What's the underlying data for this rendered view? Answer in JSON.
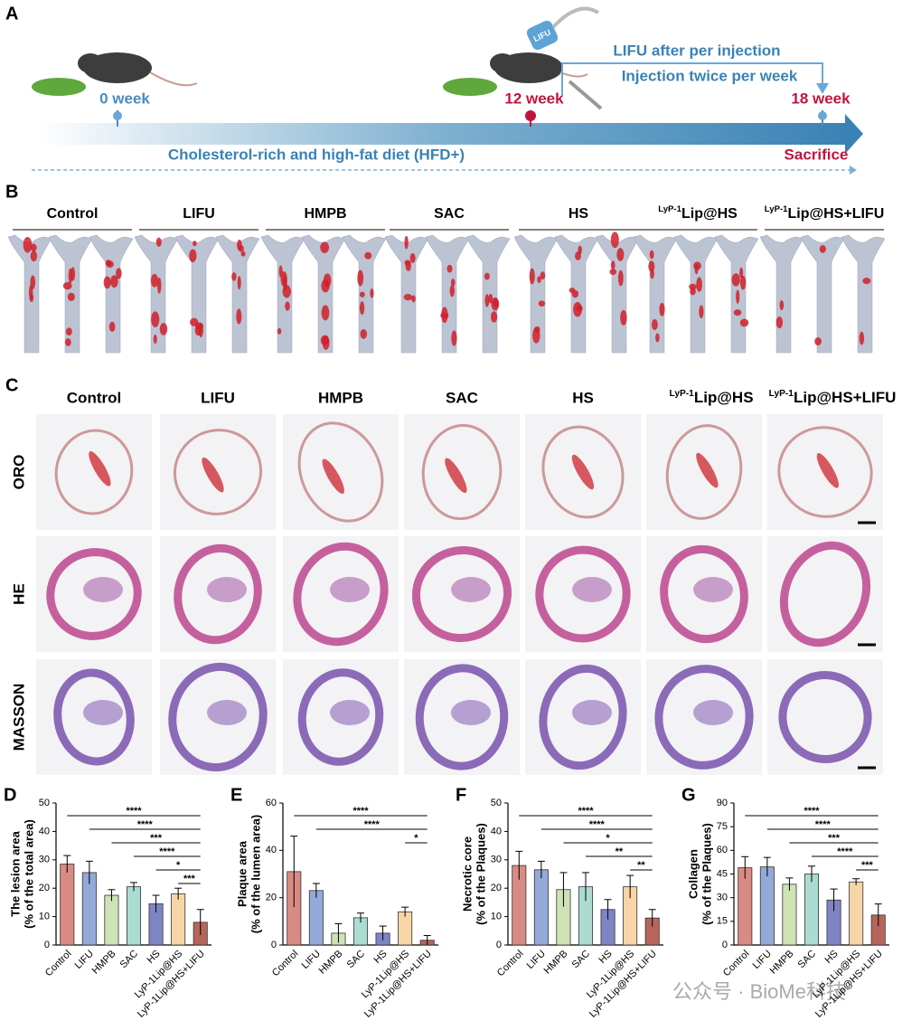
{
  "panel_a": {
    "letter": "A",
    "device": "LIFU",
    "week0": "0 week",
    "week12": "12 week",
    "week18": "18 week",
    "lifu_note": "LIFU after per injection",
    "injection_note": "Injection twice per week",
    "diet": "Cholesterol-rich and high-fat diet (HFD+)",
    "sacrifice": "Sacrifice"
  },
  "panel_b": {
    "letter": "B",
    "headers": [
      "Control",
      "LIFU",
      "HMPB",
      "SAC",
      "HS",
      {
        "sup": "LyP-1",
        "text": "Lip@HS"
      },
      {
        "sup": "LyP-1",
        "text": "Lip@HS+LIFU"
      }
    ]
  },
  "panel_c": {
    "letter": "C",
    "headers": [
      "Control",
      "LIFU",
      "HMPB",
      "SAC",
      "HS",
      {
        "sup": "LyP-1",
        "text": "Lip@HS"
      },
      {
        "sup": "LyP-1",
        "text": "Lip@HS+LIFU"
      }
    ],
    "rows": [
      "ORO",
      "HE",
      "MASSON"
    ]
  },
  "watermark": "公众号 · BioMe科技",
  "chart_data": [
    {
      "type": "bar",
      "label": "D",
      "ylabel": [
        "The lesion area",
        "(% of the total area)"
      ],
      "categories": [
        "Control",
        "LIFU",
        "HMPB",
        "SAC",
        "HS",
        "LyP-1Lip@HS",
        "LyP-1Lip@HS+LIFU"
      ],
      "values": [
        28.5,
        25.5,
        17.5,
        20.5,
        14.5,
        18,
        8
      ],
      "errors": [
        3,
        4,
        2,
        1.5,
        3,
        2,
        4.5
      ],
      "colors": [
        "#d98b83",
        "#93a9d8",
        "#cfe2b6",
        "#acdcd1",
        "#7f85c4",
        "#f8d5a6",
        "#b7655b"
      ],
      "ylim": [
        0,
        50
      ],
      "yticks": [
        0,
        10,
        20,
        30,
        40,
        50
      ],
      "significance": [
        {
          "label": "****",
          "from": "Control",
          "to": "LyP-1Lip@HS+LIFU"
        },
        {
          "label": "****",
          "from": "LIFU",
          "to": "LyP-1Lip@HS+LIFU"
        },
        {
          "label": "***",
          "from": "HMPB",
          "to": "LyP-1Lip@HS+LIFU"
        },
        {
          "label": "****",
          "from": "SAC",
          "to": "LyP-1Lip@HS+LIFU"
        },
        {
          "label": "*",
          "from": "HS",
          "to": "LyP-1Lip@HS+LIFU"
        },
        {
          "label": "***",
          "from": "LyP-1Lip@HS",
          "to": "LyP-1Lip@HS+LIFU"
        }
      ]
    },
    {
      "type": "bar",
      "label": "E",
      "ylabel": [
        "Plaque area",
        "(% of the lumen area)"
      ],
      "categories": [
        "Control",
        "LIFU",
        "HMPB",
        "SAC",
        "HS",
        "LyP-1Lip@HS",
        "LyP-1Lip@HS+LIFU"
      ],
      "values": [
        31,
        23,
        5,
        11.5,
        5,
        14,
        2
      ],
      "errors": [
        15,
        3,
        4,
        2,
        3,
        2,
        2
      ],
      "colors": [
        "#d98b83",
        "#93a9d8",
        "#cfe2b6",
        "#acdcd1",
        "#7f85c4",
        "#f8d5a6",
        "#b7655b"
      ],
      "ylim": [
        0,
        60
      ],
      "yticks": [
        0,
        20,
        40,
        60
      ],
      "significance": [
        {
          "label": "****",
          "from": "Control",
          "to": "LyP-1Lip@HS+LIFU"
        },
        {
          "label": "****",
          "from": "LIFU",
          "to": "LyP-1Lip@HS+LIFU"
        },
        {
          "label": "*",
          "from": "LyP-1Lip@HS",
          "to": "LyP-1Lip@HS+LIFU"
        }
      ]
    },
    {
      "type": "bar",
      "label": "F",
      "ylabel": [
        "Necrotic core",
        "(% of the Plaques)"
      ],
      "categories": [
        "Control",
        "LIFU",
        "HMPB",
        "SAC",
        "HS",
        "LyP-1Lip@HS",
        "LyP-1Lip@HS+LIFU"
      ],
      "values": [
        28,
        26.5,
        19.5,
        20.5,
        12.5,
        20.5,
        9.5
      ],
      "errors": [
        5,
        3,
        6,
        5,
        3.5,
        4,
        3
      ],
      "colors": [
        "#d98b83",
        "#93a9d8",
        "#cfe2b6",
        "#acdcd1",
        "#7f85c4",
        "#f8d5a6",
        "#b7655b"
      ],
      "ylim": [
        0,
        50
      ],
      "yticks": [
        0,
        10,
        20,
        30,
        40,
        50
      ],
      "significance": [
        {
          "label": "****",
          "from": "Control",
          "to": "LyP-1Lip@HS+LIFU"
        },
        {
          "label": "****",
          "from": "LIFU",
          "to": "LyP-1Lip@HS+LIFU"
        },
        {
          "label": "*",
          "from": "HMPB",
          "to": "LyP-1Lip@HS+LIFU"
        },
        {
          "label": "**",
          "from": "SAC",
          "to": "LyP-1Lip@HS+LIFU"
        },
        {
          "label": "**",
          "from": "LyP-1Lip@HS",
          "to": "LyP-1Lip@HS+LIFU"
        }
      ]
    },
    {
      "type": "bar",
      "label": "G",
      "ylabel": [
        "Collagen",
        "(% of the Plaques)"
      ],
      "categories": [
        "Control",
        "LIFU",
        "HMPB",
        "SAC",
        "HS",
        "LyP-1Lip@HS",
        "LyP-1Lip@HS+LIFU"
      ],
      "values": [
        49,
        49.5,
        38.5,
        45,
        28.5,
        40,
        19
      ],
      "errors": [
        7,
        6,
        4,
        5,
        7,
        2,
        7
      ],
      "colors": [
        "#d98b83",
        "#93a9d8",
        "#cfe2b6",
        "#acdcd1",
        "#7f85c4",
        "#f8d5a6",
        "#b7655b"
      ],
      "ylim": [
        0,
        90
      ],
      "yticks": [
        0,
        15,
        30,
        45,
        60,
        75,
        90
      ],
      "significance": [
        {
          "label": "****",
          "from": "Control",
          "to": "LyP-1Lip@HS+LIFU"
        },
        {
          "label": "****",
          "from": "LIFU",
          "to": "LyP-1Lip@HS+LIFU"
        },
        {
          "label": "***",
          "from": "HMPB",
          "to": "LyP-1Lip@HS+LIFU"
        },
        {
          "label": "****",
          "from": "SAC",
          "to": "LyP-1Lip@HS+LIFU"
        },
        {
          "label": "***",
          "from": "LyP-1Lip@HS",
          "to": "LyP-1Lip@HS+LIFU"
        }
      ]
    }
  ]
}
